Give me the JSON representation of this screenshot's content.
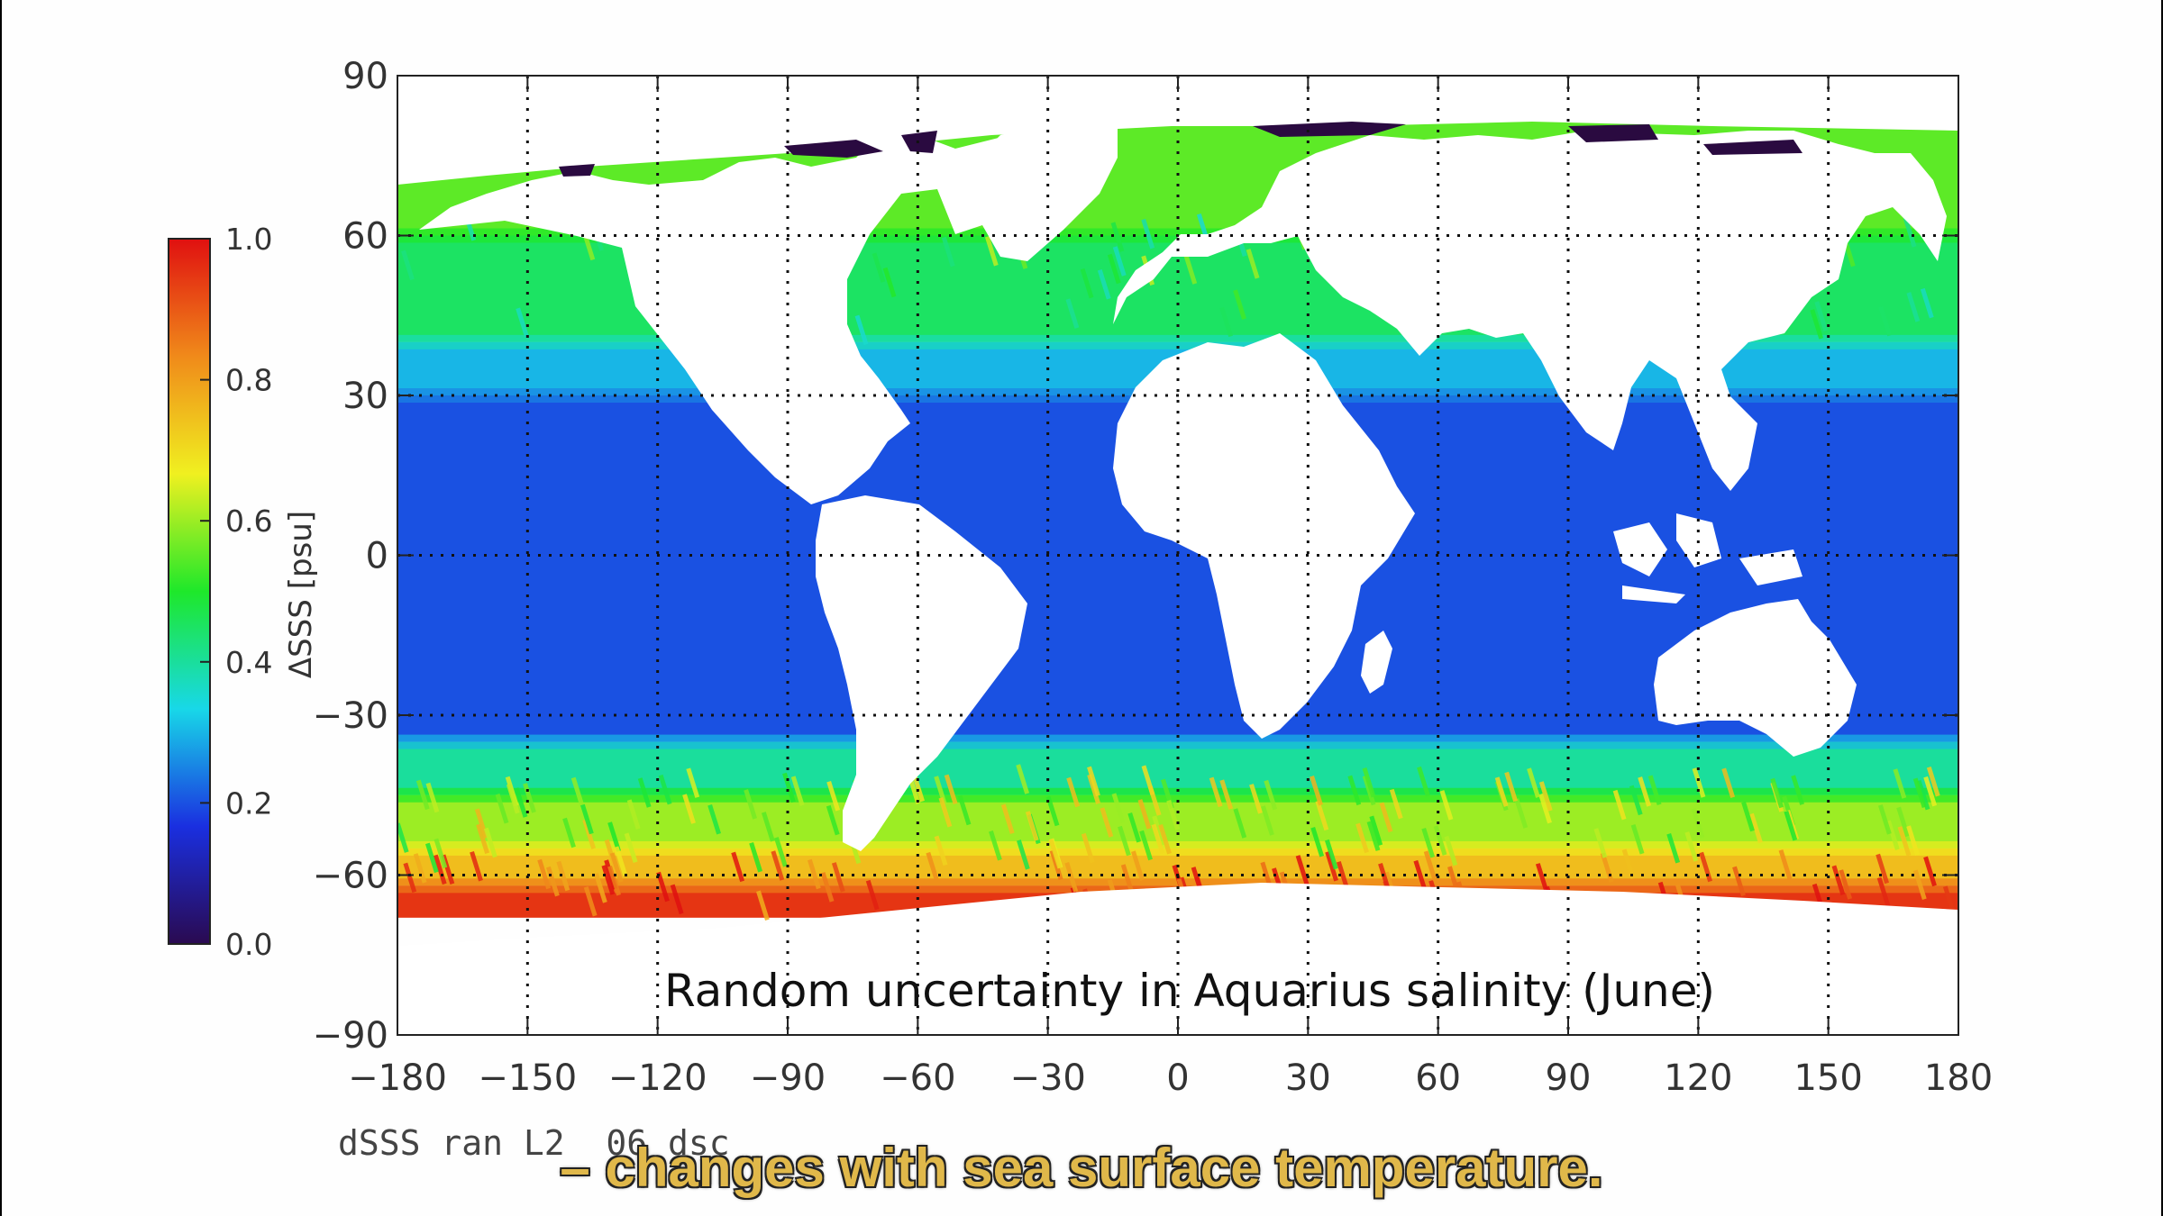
{
  "colors": {
    "ocean_low": "#1a3ee8",
    "land": "#ffffff",
    "sea_ice": "#2a0a40",
    "caption_text": "#e0b84a"
  },
  "chart_data": {
    "type": "heatmap",
    "title": "Random uncertainty in Aquarius salinity (June)",
    "footer_label": "dSSS ran L2  06 dsc",
    "xlim": [
      -180,
      180
    ],
    "ylim": [
      -90,
      90
    ],
    "x_ticks": [
      "−180",
      "−150",
      "−120",
      "−90",
      "−60",
      "−30",
      "0",
      "30",
      "60",
      "90",
      "120",
      "150",
      "180"
    ],
    "x_tick_values": [
      -180,
      -150,
      -120,
      -90,
      -60,
      -30,
      0,
      30,
      60,
      90,
      120,
      150,
      180
    ],
    "y_ticks": [
      "90",
      "60",
      "30",
      "0",
      "−30",
      "−60",
      "−90"
    ],
    "y_tick_values": [
      90,
      60,
      30,
      0,
      -30,
      -60,
      -90
    ],
    "grid": "dotted",
    "colorbar": {
      "label": "ΔSSS [psu]",
      "range": [
        0.0,
        1.0
      ],
      "tick_labels": [
        "1.0",
        "0.8",
        "0.6",
        "0.4",
        "0.2",
        "0.0"
      ],
      "tick_values": [
        1.0,
        0.8,
        0.6,
        0.4,
        0.2,
        0.0
      ],
      "stops": [
        "#2a0a50",
        "#1a2fe0",
        "#18d8e8",
        "#1ee82a",
        "#f0f020",
        "#f08a1a",
        "#e01010"
      ]
    },
    "zonal_bands": [
      {
        "lat_range": [
          60,
          85
        ],
        "value": 0.55
      },
      {
        "lat_range": [
          40,
          60
        ],
        "value": 0.45
      },
      {
        "lat_range": [
          30,
          40
        ],
        "value": 0.3
      },
      {
        "lat_range": [
          -35,
          30
        ],
        "value": 0.2
      },
      {
        "lat_range": [
          -45,
          -35
        ],
        "value": 0.4
      },
      {
        "lat_range": [
          -55,
          -45
        ],
        "value": 0.6
      },
      {
        "lat_range": [
          -62,
          -55
        ],
        "value": 0.75
      },
      {
        "lat_range": [
          -68,
          -62
        ],
        "value": 0.95
      }
    ]
  },
  "caption": "– changes with sea surface temperature."
}
